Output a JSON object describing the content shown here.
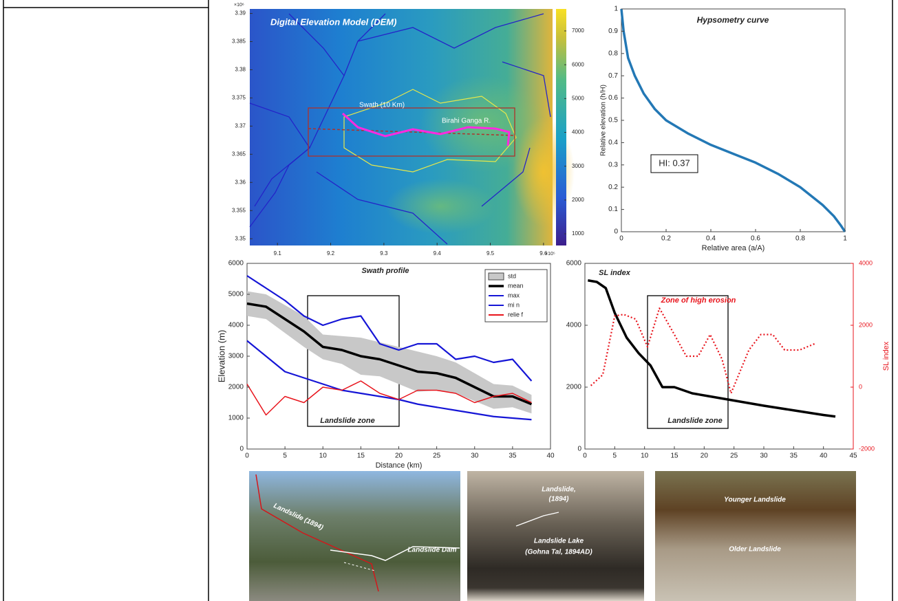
{
  "dem": {
    "title": "Digital Elevation Model (DEM)",
    "xlim": [
      9.048,
      9.617
    ],
    "xticks": [
      9.1,
      9.2,
      9.3,
      9.4,
      9.5,
      9.6
    ],
    "x_multiplier": "×10⁵",
    "ylim": [
      3.3488,
      3.3908
    ],
    "yticks": [
      3.35,
      3.355,
      3.36,
      3.365,
      3.37,
      3.375,
      3.38,
      3.385,
      3.39
    ],
    "y_multiplier": "×10⁶",
    "colorbar_lim": [
      655,
      7650
    ],
    "colorbar_ticks": [
      1000,
      2000,
      3000,
      4000,
      5000,
      6000,
      7000
    ],
    "labels": [
      "Swath (10 Km)",
      "Birahi Ganga R."
    ]
  },
  "chart_data": [
    {
      "type": "line",
      "title": "Hypsometry curve",
      "xlabel": "Relative area (a/A)",
      "ylabel": "Relative elevation (h/H)",
      "xlim": [
        0,
        1
      ],
      "ylim": [
        0,
        1
      ],
      "xticks": [
        0,
        0.2,
        0.4,
        0.6,
        0.8,
        1
      ],
      "yticks": [
        0,
        0.1,
        0.2,
        0.3,
        0.4,
        0.5,
        0.6,
        0.7,
        0.8,
        0.9,
        1
      ],
      "x": [
        0,
        0.01,
        0.03,
        0.06,
        0.1,
        0.15,
        0.2,
        0.3,
        0.4,
        0.5,
        0.6,
        0.7,
        0.8,
        0.9,
        0.95,
        0.98,
        1
      ],
      "series": [
        {
          "color": "#2378b5",
          "values": [
            1,
            0.9,
            0.78,
            0.7,
            0.62,
            0.55,
            0.5,
            0.44,
            0.39,
            0.35,
            0.31,
            0.26,
            0.2,
            0.12,
            0.07,
            0.03,
            0
          ]
        }
      ],
      "annotations": [
        "HI: 0.37"
      ]
    },
    {
      "type": "line",
      "title": "Swath profile",
      "xlabel": "Distance (km)",
      "ylabel": "Elevation (m)",
      "xlim": [
        0,
        40
      ],
      "ylim": [
        0,
        6000
      ],
      "xticks": [
        0,
        5,
        10,
        15,
        20,
        25,
        30,
        35,
        40
      ],
      "yticks": [
        0,
        1000,
        2000,
        3000,
        4000,
        5000,
        6000
      ],
      "x": [
        0,
        2.5,
        5,
        7.5,
        10,
        12.5,
        15,
        17.5,
        20,
        22.5,
        25,
        27.5,
        30,
        32.5,
        35,
        37.5
      ],
      "series": [
        {
          "name": "std",
          "color": "#c8c8c8",
          "style": "band",
          "values": [
            400,
            400,
            450,
            500,
            400,
            450,
            600,
            550,
            600,
            650,
            550,
            500,
            450,
            400,
            350,
            300
          ]
        },
        {
          "name": "mean",
          "color": "#000000",
          "values": [
            4700,
            4600,
            4200,
            3800,
            3300,
            3200,
            3000,
            2900,
            2700,
            2500,
            2450,
            2300,
            2000,
            1700,
            1700,
            1450
          ]
        },
        {
          "name": "max",
          "color": "#1515d6",
          "values": [
            5600,
            5200,
            4800,
            4300,
            4000,
            4200,
            4300,
            3400,
            3200,
            3400,
            3400,
            2900,
            3000,
            2800,
            2900,
            2200
          ]
        },
        {
          "name": "mi n",
          "color": "#1515d6",
          "values": [
            3500,
            3000,
            2500,
            2300,
            2100,
            1900,
            1800,
            1700,
            1600,
            1450,
            1350,
            1250,
            1150,
            1050,
            1000,
            950
          ]
        },
        {
          "name": "relie f",
          "color": "#e8131b",
          "values": [
            2100,
            1100,
            1700,
            1500,
            2000,
            1900,
            2200,
            1800,
            1600,
            1900,
            1900,
            1800,
            1500,
            1700,
            1800,
            1500
          ]
        }
      ],
      "annotations": [
        "Landslide zone"
      ]
    },
    {
      "type": "line",
      "title": "SL index",
      "y2label": "SL index",
      "xlim": [
        0,
        45
      ],
      "ylim": [
        0,
        6000
      ],
      "y2lim": [
        -2000,
        4000
      ],
      "xticks": [
        0,
        5,
        10,
        15,
        20,
        25,
        30,
        35,
        40,
        45
      ],
      "yticks": [
        0,
        2000,
        4000,
        6000
      ],
      "y2ticks": [
        -2000,
        0,
        2000,
        4000
      ],
      "series": [
        {
          "color": "#000000",
          "x": [
            0.5,
            2,
            3.5,
            5,
            7,
            9,
            11,
            13,
            15,
            18,
            21,
            24,
            27,
            30,
            35,
            40,
            42
          ],
          "values": [
            5450,
            5400,
            5200,
            4400,
            3600,
            3100,
            2700,
            2000,
            2000,
            1800,
            1700,
            1600,
            1500,
            1400,
            1250,
            1100,
            1050
          ]
        },
        {
          "color": "#e8131b",
          "style": "dotted",
          "axis": "y2",
          "x": [
            1,
            3,
            5,
            6.5,
            8.5,
            10.5,
            12.5,
            15,
            17,
            19,
            21,
            23,
            24.5,
            27.5,
            29.5,
            31.5,
            33.5,
            36,
            38.5
          ],
          "values": [
            50,
            400,
            2300,
            2350,
            2200,
            1300,
            2550,
            1700,
            1000,
            1000,
            1700,
            900,
            -200,
            1200,
            1700,
            1700,
            1200,
            1200,
            1400
          ]
        }
      ],
      "annotations": [
        "Zone of high erosion",
        "Landslide zone"
      ]
    }
  ],
  "photos": [
    {
      "labels": [
        "Landslide (1894)",
        "Landslide Dam"
      ]
    },
    {
      "labels": [
        "Landslide,",
        "(1894)",
        "Landslide Lake",
        "(Gohna Tal, 1894AD)"
      ]
    },
    {
      "labels": [
        "Younger Landslide",
        "Older Landslide"
      ]
    }
  ]
}
